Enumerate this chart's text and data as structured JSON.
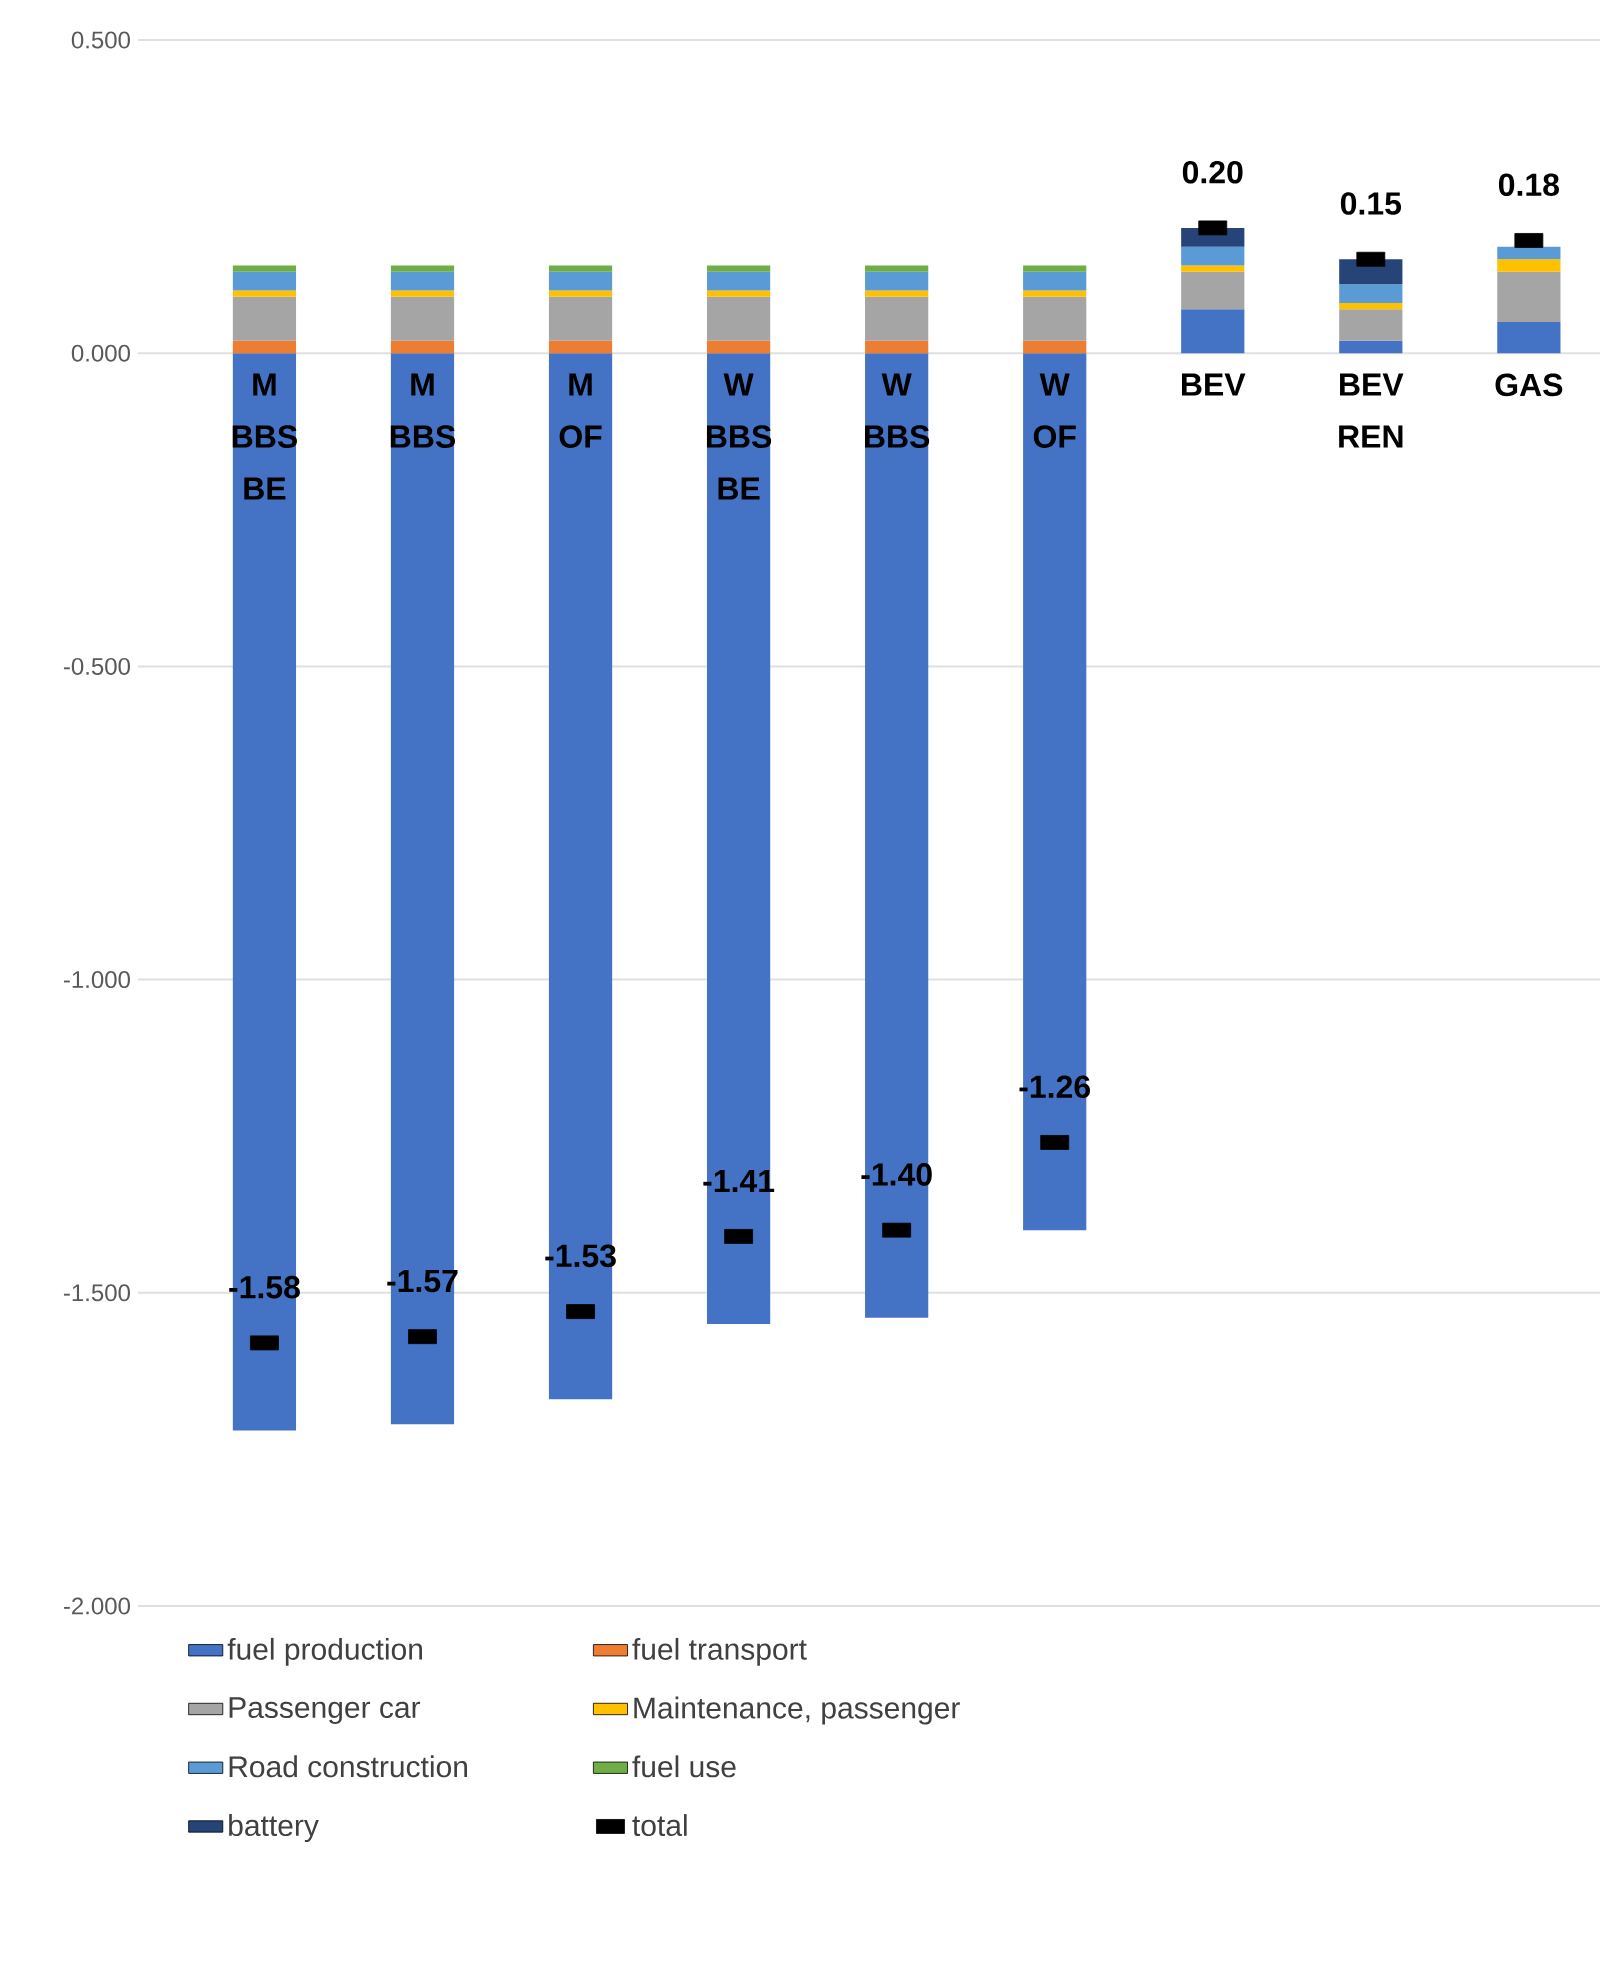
{
  "chart_data": {
    "type": "bar",
    "stacked": true,
    "categories": [
      "M BBS BE",
      "M BBS",
      "M OF",
      "W BBS BE",
      "W BBS",
      "W OF",
      "BEV",
      "BEV REN",
      "GAS"
    ],
    "series": [
      {
        "name": "fuel production",
        "color": "#4472c4",
        "values": [
          -1.72,
          -1.71,
          -1.67,
          -1.55,
          -1.54,
          -1.4,
          0.07,
          0.02,
          0.05
        ]
      },
      {
        "name": "fuel transport",
        "color": "#ed7d31",
        "values": [
          0.02,
          0.02,
          0.02,
          0.02,
          0.02,
          0.02,
          null,
          null,
          null
        ]
      },
      {
        "name": "Passenger car",
        "color": "#a5a5a5",
        "values": [
          0.07,
          0.07,
          0.07,
          0.07,
          0.07,
          0.07,
          0.06,
          0.05,
          0.08
        ]
      },
      {
        "name": "Maintenance, passenger",
        "color": "#ffc000",
        "values": [
          0.01,
          0.01,
          0.01,
          0.01,
          0.01,
          0.01,
          0.01,
          0.01,
          0.02
        ]
      },
      {
        "name": "Road construction",
        "color": "#5b9bd5",
        "values": [
          0.03,
          0.03,
          0.03,
          0.03,
          0.03,
          0.03,
          0.03,
          0.03,
          0.02
        ]
      },
      {
        "name": "fuel use",
        "color": "#70ad47",
        "values": [
          0.01,
          0.01,
          0.01,
          0.01,
          0.01,
          0.01,
          null,
          null,
          null
        ]
      },
      {
        "name": "battery",
        "color": "#264478",
        "values": [
          null,
          null,
          null,
          null,
          null,
          null,
          0.03,
          0.04,
          null
        ]
      },
      {
        "name": "total",
        "type": "scatter",
        "color": "#000000",
        "values": [
          -1.58,
          -1.57,
          -1.53,
          -1.41,
          -1.4,
          -1.26,
          0.2,
          0.15,
          0.18
        ],
        "value_labels": [
          "-1.58",
          "-1.57",
          "-1.53",
          "-1.41",
          "-1.40",
          "-1.26",
          "0.20",
          "0.15",
          "0.18"
        ]
      }
    ],
    "ylim": [
      -2.0,
      0.5
    ],
    "yticks": [
      {
        "value": -2.0,
        "label": "-2.000"
      },
      {
        "value": -1.5,
        "label": "-1.500"
      },
      {
        "value": -1.0,
        "label": "-1.000"
      },
      {
        "value": -0.5,
        "label": "-0.500"
      },
      {
        "value": 0.0,
        "label": "0.000"
      },
      {
        "value": 0.5,
        "label": "0.500"
      }
    ],
    "grid": "y",
    "legend": "bottom"
  }
}
